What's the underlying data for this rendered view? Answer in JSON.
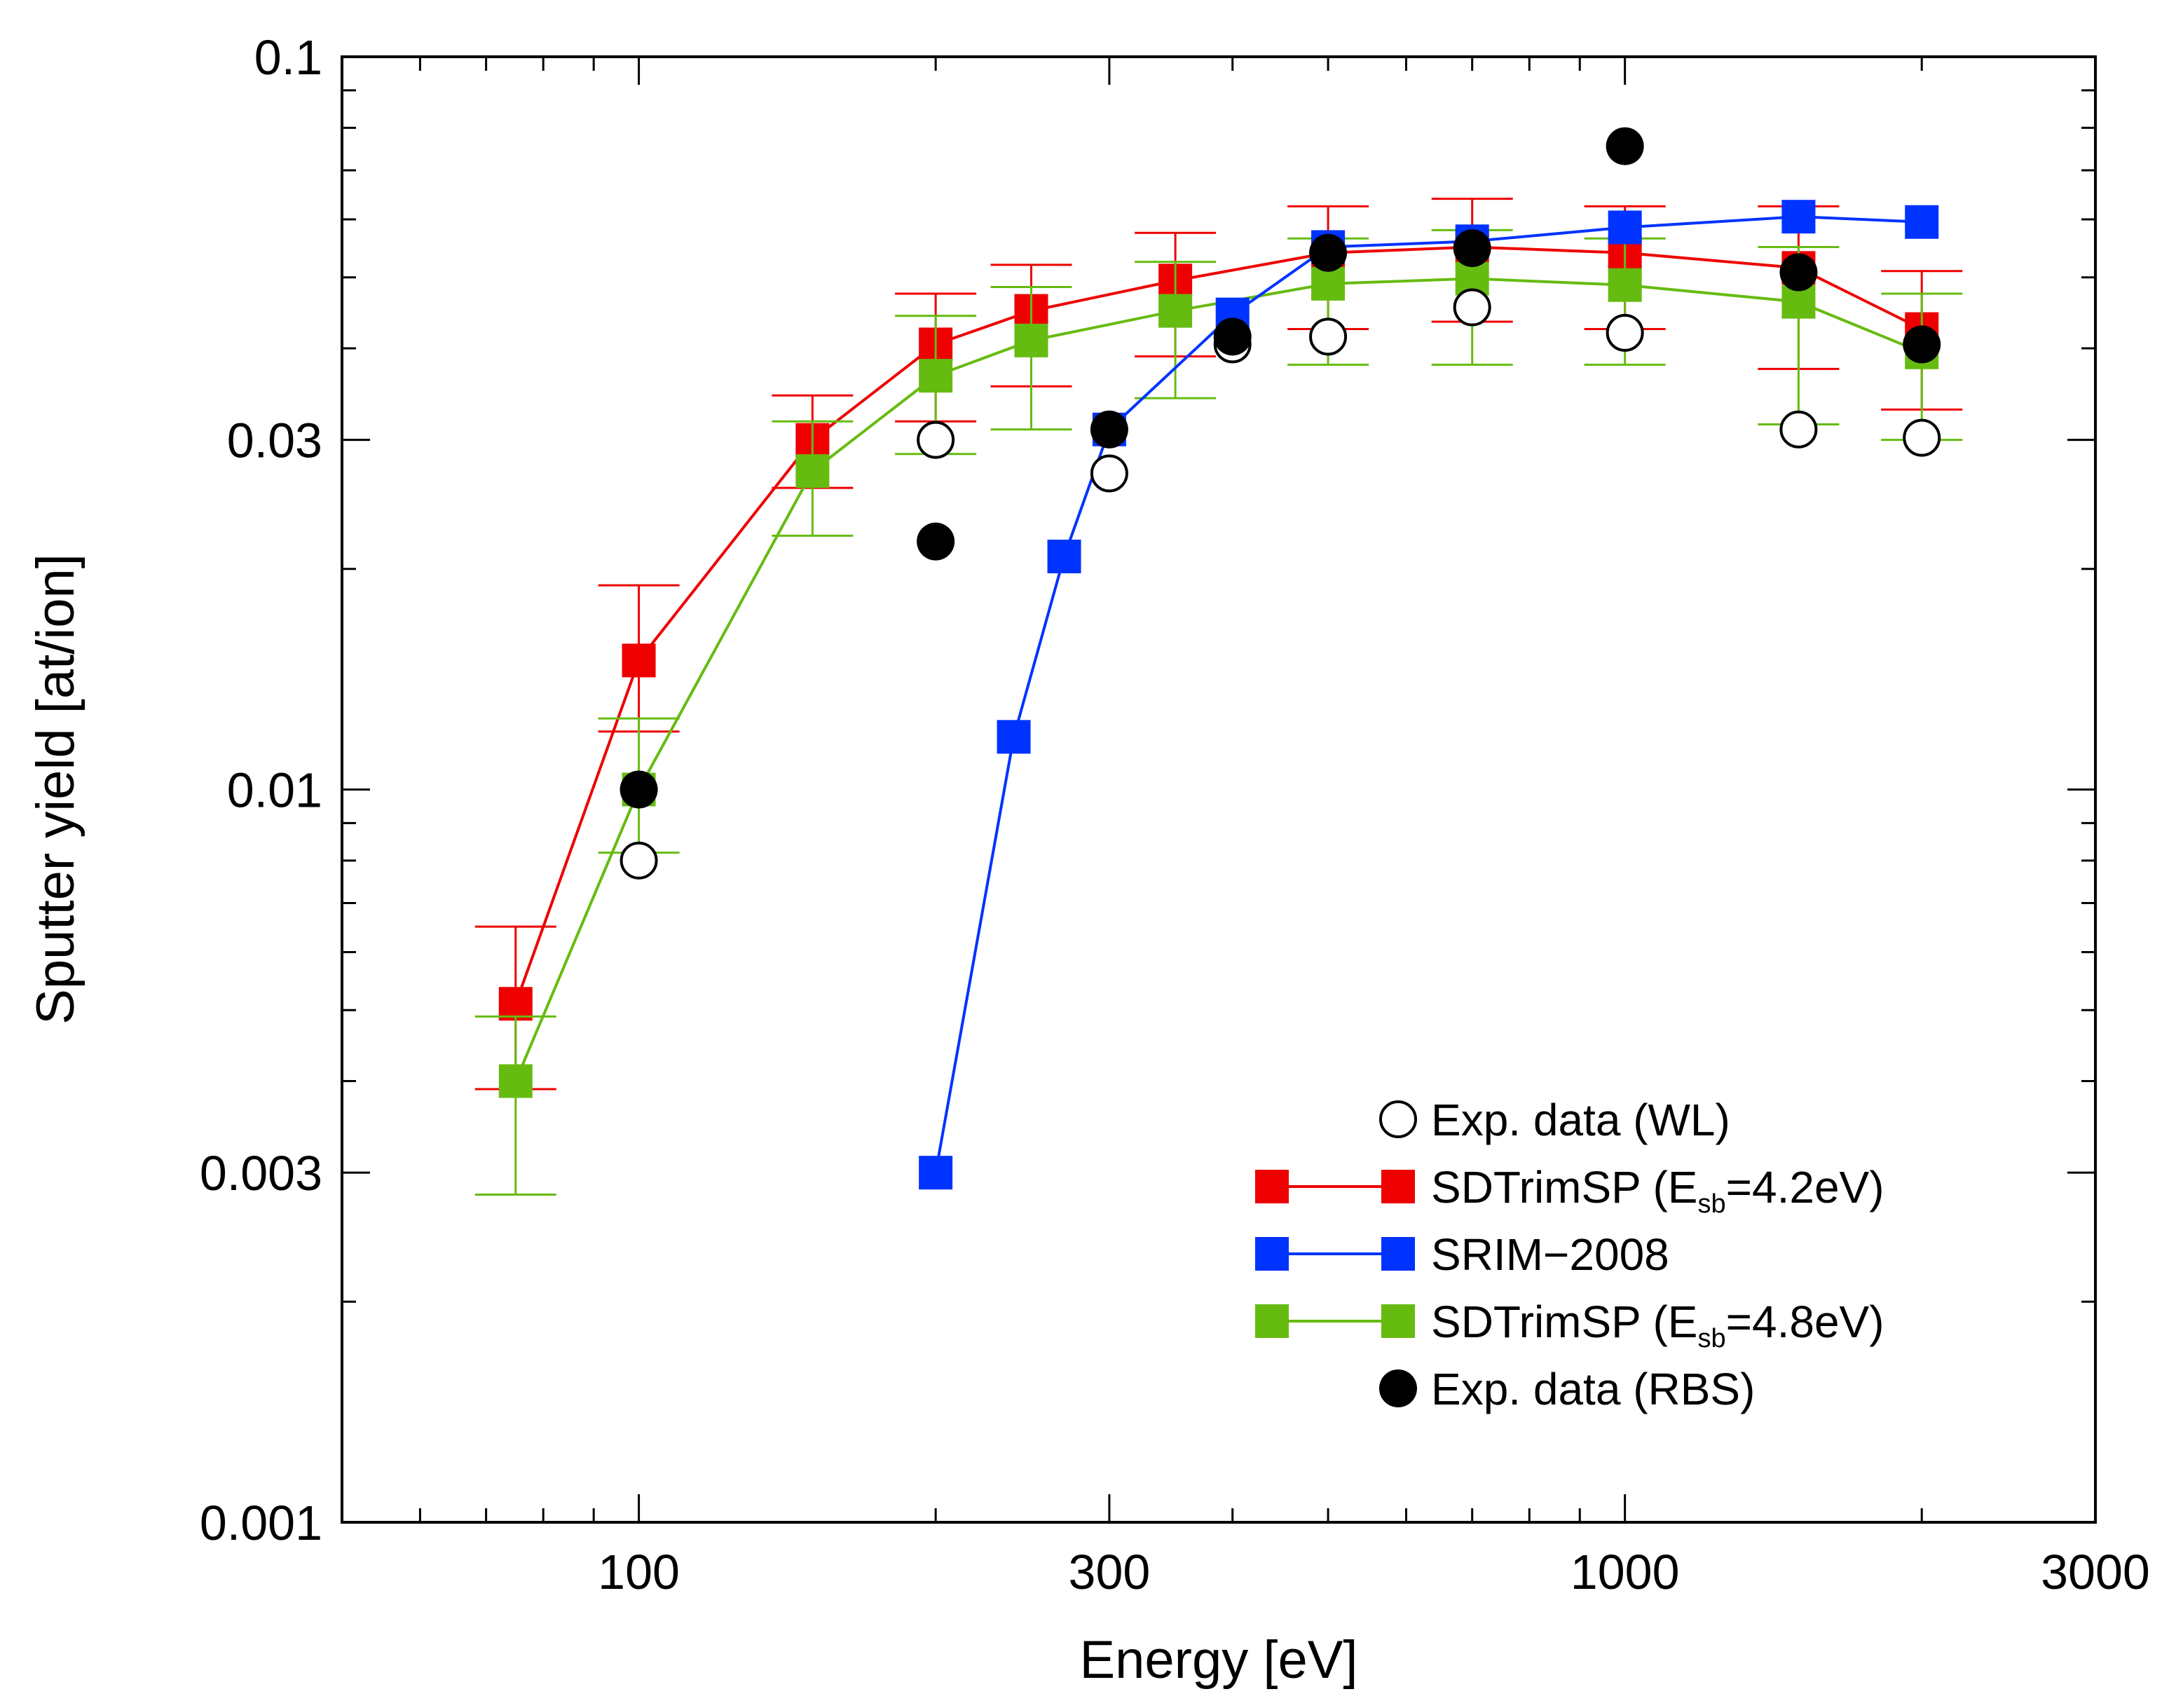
{
  "chart_data": {
    "type": "scatter",
    "title": "",
    "xlabel": "Energy [eV]",
    "ylabel": "Sputter yield [at/ion]",
    "xscale": "log",
    "yscale": "log",
    "xlim": [
      50,
      3000
    ],
    "ylim": [
      0.001,
      0.1
    ],
    "xticks": [
      100,
      300,
      1000,
      3000
    ],
    "xtick_labels": [
      "100",
      "300",
      "1000",
      "3000"
    ],
    "yticks": [
      0.001,
      0.003,
      0.01,
      0.03,
      0.1
    ],
    "ytick_labels": [
      "0.001",
      "0.003",
      "0.01",
      "0.03",
      "0.1"
    ],
    "legend_position": "bottom-right",
    "series": [
      {
        "name": "SDTrimSP (Esb=4.2eV)",
        "legend_prefix": "SDTrimSP (E",
        "legend_sub": "sb",
        "legend_suffix": "=4.2eV)",
        "color": "#ee0000",
        "marker": "square",
        "line": true,
        "x": [
          75,
          100,
          150,
          200,
          250,
          350,
          500,
          700,
          1000,
          1500,
          2000
        ],
        "y": [
          0.0051,
          0.015,
          0.03,
          0.0405,
          0.045,
          0.0495,
          0.054,
          0.055,
          0.054,
          0.0515,
          0.0425
        ],
        "err_low": [
          0.0039,
          0.012,
          0.0258,
          0.0318,
          0.0355,
          0.039,
          0.0425,
          0.0435,
          0.0425,
          0.0375,
          0.033
        ],
        "err_high": [
          0.0065,
          0.019,
          0.0345,
          0.0475,
          0.052,
          0.0575,
          0.0625,
          0.064,
          0.0625,
          0.0625,
          0.051
        ]
      },
      {
        "name": "SRIM-2008",
        "legend_prefix": "SRIM−2008",
        "legend_sub": "",
        "legend_suffix": "",
        "color": "#0033ff",
        "marker": "square",
        "line": true,
        "x": [
          200,
          240,
          270,
          300,
          400,
          500,
          700,
          1000,
          1500,
          2000
        ],
        "y": [
          0.003,
          0.0118,
          0.0208,
          0.031,
          0.0445,
          0.055,
          0.056,
          0.0585,
          0.0605,
          0.0595
        ],
        "err_low": [],
        "err_high": []
      },
      {
        "name": "SDTrimSP (Esb=4.8eV)",
        "legend_prefix": "SDTrimSP (E",
        "legend_sub": "sb",
        "legend_suffix": "=4.8eV)",
        "color": "#66bb11",
        "marker": "square",
        "line": true,
        "x": [
          75,
          100,
          150,
          200,
          250,
          350,
          500,
          700,
          1000,
          1500,
          2000
        ],
        "y": [
          0.004,
          0.01,
          0.0272,
          0.0367,
          0.041,
          0.045,
          0.049,
          0.0498,
          0.0488,
          0.0463,
          0.0395
        ],
        "err_low": [
          0.0028,
          0.0082,
          0.0222,
          0.0287,
          0.031,
          0.0342,
          0.038,
          0.038,
          0.038,
          0.0315,
          0.03
        ],
        "err_high": [
          0.0049,
          0.0125,
          0.0318,
          0.0443,
          0.0485,
          0.0525,
          0.0565,
          0.058,
          0.0565,
          0.055,
          0.0475
        ]
      },
      {
        "name": "Exp. data (WL)",
        "legend_prefix": "Exp. data (WL)",
        "legend_sub": "",
        "legend_suffix": "",
        "color": "#000000",
        "marker": "open-circle",
        "line": false,
        "x": [
          100,
          200,
          300,
          400,
          500,
          700,
          1000,
          1500,
          2000
        ],
        "y": [
          0.008,
          0.03,
          0.027,
          0.0405,
          0.0415,
          0.0455,
          0.042,
          0.031,
          0.0302
        ],
        "err_low": [],
        "err_high": []
      },
      {
        "name": "Exp. data (RBS)",
        "legend_prefix": "Exp. data (RBS)",
        "legend_sub": "",
        "legend_suffix": "",
        "color": "#000000",
        "marker": "filled-circle",
        "line": false,
        "x": [
          100,
          200,
          300,
          400,
          500,
          700,
          1000,
          1500,
          2000
        ],
        "y": [
          0.01,
          0.0218,
          0.031,
          0.0415,
          0.054,
          0.0548,
          0.0755,
          0.0508,
          0.0405
        ],
        "err_low": [],
        "err_high": []
      }
    ],
    "legend_order": [
      3,
      0,
      1,
      2,
      4
    ]
  }
}
